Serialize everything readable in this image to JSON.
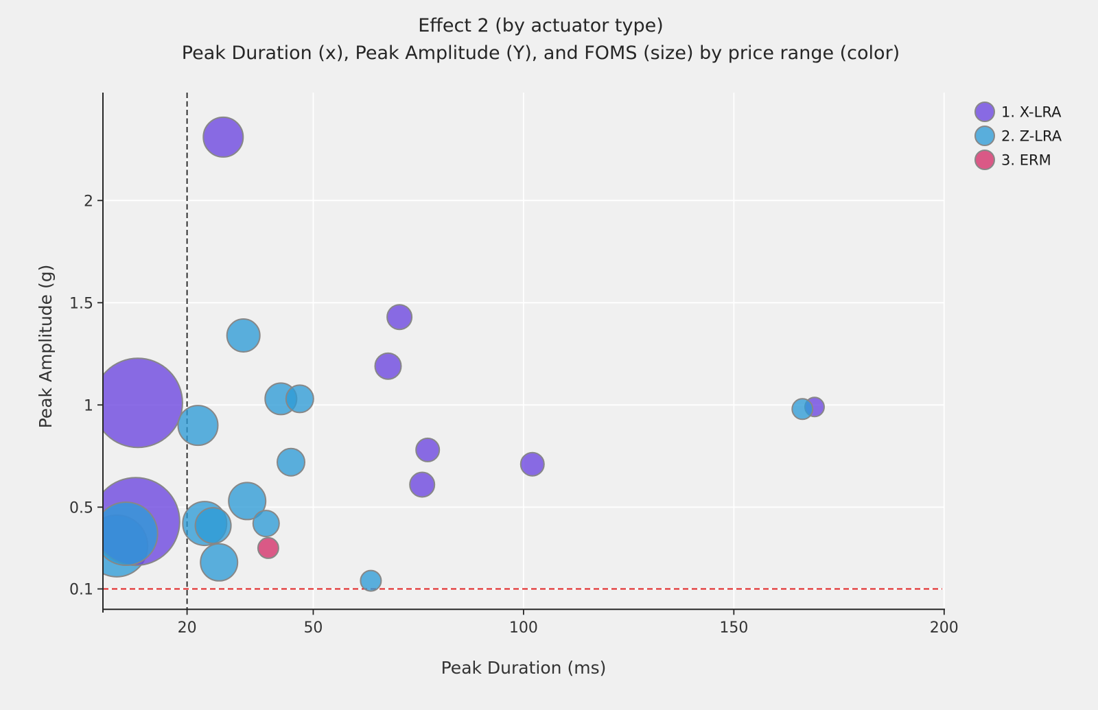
{
  "title": "Effect 2 (by actuator type)",
  "subtitle": "Peak Duration (x), Peak Amplitude (Y), and FOMS (size) by price range (color)",
  "chart_data": {
    "type": "scatter",
    "title": "Effect 2 (by actuator type)",
    "subtitle": "Peak Duration (x), Peak Amplitude (Y), and FOMS (size) by price range (color)",
    "xlabel": "Peak Duration (ms)",
    "ylabel": "Peak Amplitude (g)",
    "xlim": [
      0,
      200
    ],
    "ylim": [
      0,
      2.51
    ],
    "grid": true,
    "x_ticks": [
      {
        "value": 20,
        "label": "20"
      },
      {
        "value": 50,
        "label": "50"
      },
      {
        "value": 100,
        "label": "100"
      },
      {
        "value": 150,
        "label": "150"
      },
      {
        "value": 200,
        "label": "200"
      }
    ],
    "y_ticks": [
      {
        "value": 0.1,
        "label": "0.1"
      },
      {
        "value": 0.5,
        "label": "0.5"
      },
      {
        "value": 1,
        "label": "1"
      },
      {
        "value": 1.5,
        "label": "1.5"
      },
      {
        "value": 2,
        "label": "2"
      }
    ],
    "reference_lines": [
      {
        "axis": "x",
        "value": 20,
        "style": "dashed",
        "color": "#1c1c1c"
      },
      {
        "axis": "y",
        "value": 0.1,
        "style": "dashed",
        "color": "#e22222"
      }
    ],
    "legend": {
      "position": "top-right",
      "entries": [
        {
          "label": "1. X-LRA",
          "color": "#6a44df"
        },
        {
          "label": "2. Z-LRA",
          "color": "#2e9bd6"
        },
        {
          "label": "3. ERM",
          "color": "#d42e68"
        }
      ]
    },
    "size_encoding": "FOMS (bubble radius in px)",
    "series": [
      {
        "name": "1. X-LRA",
        "color": "#6a44df",
        "points": [
          {
            "x": 28.6,
            "y": 2.31,
            "r": 29
          },
          {
            "x": 8.3,
            "y": 1.01,
            "r": 65
          },
          {
            "x": 7.8,
            "y": 0.43,
            "r": 64
          },
          {
            "x": 70.5,
            "y": 1.43,
            "r": 18
          },
          {
            "x": 67.8,
            "y": 1.19,
            "r": 19
          },
          {
            "x": 77.2,
            "y": 0.78,
            "r": 17
          },
          {
            "x": 75.9,
            "y": 0.61,
            "r": 18
          },
          {
            "x": 102.1,
            "y": 0.71,
            "r": 17
          },
          {
            "x": 169.2,
            "y": 0.99,
            "r": 14
          }
        ]
      },
      {
        "name": "2. Z-LRA",
        "color": "#2e9bd6",
        "points": [
          {
            "x": 3.3,
            "y": 0.31,
            "r": 45,
            "z": 0
          },
          {
            "x": 5.5,
            "y": 0.37,
            "r": 46
          },
          {
            "x": 22.6,
            "y": 0.9,
            "r": 29
          },
          {
            "x": 33.4,
            "y": 1.34,
            "r": 24
          },
          {
            "x": 42.3,
            "y": 1.03,
            "r": 23
          },
          {
            "x": 46.8,
            "y": 1.03,
            "r": 20
          },
          {
            "x": 44.7,
            "y": 0.72,
            "r": 20
          },
          {
            "x": 34.3,
            "y": 0.53,
            "r": 27
          },
          {
            "x": 24.2,
            "y": 0.42,
            "r": 32
          },
          {
            "x": 26.2,
            "y": 0.41,
            "r": 26
          },
          {
            "x": 38.8,
            "y": 0.42,
            "r": 19
          },
          {
            "x": 27.6,
            "y": 0.23,
            "r": 27
          },
          {
            "x": 63.7,
            "y": 0.14,
            "r": 15
          },
          {
            "x": 166.3,
            "y": 0.98,
            "r": 15
          }
        ]
      },
      {
        "name": "3. ERM",
        "color": "#d42e68",
        "points": [
          {
            "x": 39.3,
            "y": 0.3,
            "r": 15
          }
        ]
      }
    ]
  }
}
